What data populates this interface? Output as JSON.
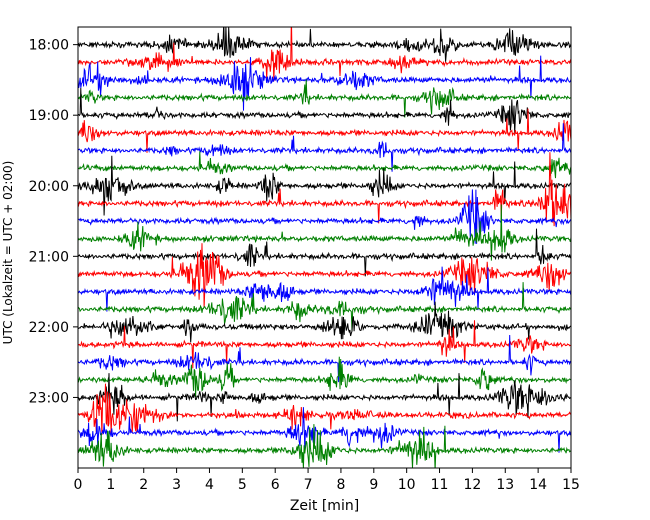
{
  "chart_data": {
    "type": "line",
    "title": "",
    "xlabel": "Zeit  [min]",
    "ylabel": "UTC (Lokalzeit = UTC + 02:00)",
    "xlim": [
      0,
      15
    ],
    "x_ticks": [
      "0",
      "1",
      "2",
      "3",
      "4",
      "5",
      "6",
      "7",
      "8",
      "9",
      "10",
      "11",
      "12",
      "13",
      "14",
      "15"
    ],
    "ylim": [
      "17:45",
      "24:00"
    ],
    "y_ticks": [
      "18:00",
      "19:00",
      "20:00",
      "21:00",
      "22:00",
      "23:00"
    ],
    "y_tick_values_hours": [
      18,
      19,
      20,
      21,
      22,
      23
    ],
    "row_interval_minutes": 15,
    "first_row_hour": 18.0,
    "row_count": 24,
    "color_cycle": [
      "#000000",
      "#ff0000",
      "#0000ff",
      "#008000"
    ],
    "grid": false,
    "legend": "none",
    "description_of_series": "Stacked seismogram traces, one trace per 15-minute window from 18:00 to 23:45 UTC, colors cycling black, red, blue, green."
  }
}
